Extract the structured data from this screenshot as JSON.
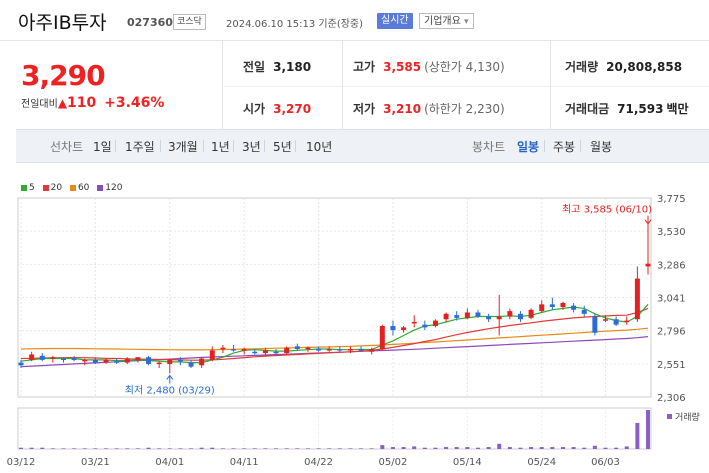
{
  "header": {
    "stock_name": "아주IB투자",
    "stock_code": "027360",
    "market": "코스닥",
    "datetime": "2024.06.10 15:13 기준(장중)",
    "realtime_label": "실시간",
    "overview_label": "기업개요"
  },
  "price": {
    "current": "3,290",
    "change_label": "전일대비",
    "change": "110",
    "change_pct": "+3.46%"
  },
  "stats": {
    "prev_close_label": "전일",
    "prev_close": "3,180",
    "high_label": "고가",
    "high": "3,585",
    "upper_limit": "(상한가 4,130)",
    "volume_label": "거래량",
    "volume": "20,808,858",
    "open_label": "시가",
    "open": "3,270",
    "low_label": "저가",
    "low": "3,210",
    "lower_limit": "(하한가 2,230)",
    "amount_label": "거래대금",
    "amount": "71,593",
    "amount_unit": "백만"
  },
  "toolbar": {
    "line_chart_label": "선차트",
    "periods": [
      "1일",
      "1주일",
      "3개월",
      "1년",
      "3년",
      "5년",
      "10년"
    ],
    "candle_chart_label": "봉차트",
    "candle_periods": [
      "일봉",
      "주봉",
      "월봉"
    ],
    "active_candle": "일봉"
  },
  "legend": {
    "ma": [
      {
        "label": "5",
        "color": "#33aa33"
      },
      {
        "label": "20",
        "color": "#e03a3a"
      },
      {
        "label": "60",
        "color": "#e88a1a"
      },
      {
        "label": "120",
        "color": "#8a4bb8"
      }
    ]
  },
  "colors": {
    "up": "#e22222",
    "down": "#2a6dd9",
    "volume": "#8a5fc8"
  },
  "chart_data": {
    "type": "candlestick",
    "y_ticks": [
      "3,775",
      "3,530",
      "3,286",
      "3,041",
      "2,796",
      "2,551",
      "2,306"
    ],
    "y_range": [
      2306,
      3775
    ],
    "x_ticks": [
      {
        "label": "03/12",
        "index": 0
      },
      {
        "label": "03/21",
        "index": 7
      },
      {
        "label": "04/01",
        "index": 14
      },
      {
        "label": "04/11",
        "index": 21
      },
      {
        "label": "04/22",
        "index": 28
      },
      {
        "label": "05/02",
        "index": 35
      },
      {
        "label": "05/14",
        "index": 42
      },
      {
        "label": "05/24",
        "index": 49
      },
      {
        "label": "06/03",
        "index": 55
      }
    ],
    "max_annotation": "최고 3,585 (06/10)",
    "min_annotation": "최저 2,480 (03/29)",
    "volume_label": "거래량",
    "candles": [
      {
        "o": 2560,
        "h": 2580,
        "l": 2520,
        "c": 2540
      },
      {
        "o": 2580,
        "h": 2640,
        "l": 2570,
        "c": 2620
      },
      {
        "o": 2610,
        "h": 2630,
        "l": 2570,
        "c": 2580
      },
      {
        "o": 2590,
        "h": 2610,
        "l": 2560,
        "c": 2600
      },
      {
        "o": 2590,
        "h": 2600,
        "l": 2560,
        "c": 2580
      },
      {
        "o": 2590,
        "h": 2610,
        "l": 2570,
        "c": 2580
      },
      {
        "o": 2570,
        "h": 2590,
        "l": 2540,
        "c": 2580
      },
      {
        "o": 2580,
        "h": 2600,
        "l": 2550,
        "c": 2560
      },
      {
        "o": 2560,
        "h": 2590,
        "l": 2550,
        "c": 2580
      },
      {
        "o": 2570,
        "h": 2590,
        "l": 2550,
        "c": 2560
      },
      {
        "o": 2560,
        "h": 2600,
        "l": 2550,
        "c": 2590
      },
      {
        "o": 2580,
        "h": 2600,
        "l": 2560,
        "c": 2600
      },
      {
        "o": 2600,
        "h": 2610,
        "l": 2540,
        "c": 2550
      },
      {
        "o": 2550,
        "h": 2570,
        "l": 2520,
        "c": 2560
      },
      {
        "o": 2550,
        "h": 2590,
        "l": 2480,
        "c": 2580
      },
      {
        "o": 2580,
        "h": 2600,
        "l": 2540,
        "c": 2570
      },
      {
        "o": 2560,
        "h": 2580,
        "l": 2520,
        "c": 2530
      },
      {
        "o": 2540,
        "h": 2600,
        "l": 2520,
        "c": 2590
      },
      {
        "o": 2580,
        "h": 2680,
        "l": 2570,
        "c": 2650
      },
      {
        "o": 2660,
        "h": 2690,
        "l": 2630,
        "c": 2670
      },
      {
        "o": 2660,
        "h": 2690,
        "l": 2640,
        "c": 2650
      },
      {
        "o": 2650,
        "h": 2670,
        "l": 2620,
        "c": 2660
      },
      {
        "o": 2640,
        "h": 2660,
        "l": 2620,
        "c": 2630
      },
      {
        "o": 2630,
        "h": 2670,
        "l": 2620,
        "c": 2650
      },
      {
        "o": 2640,
        "h": 2660,
        "l": 2620,
        "c": 2630
      },
      {
        "o": 2630,
        "h": 2680,
        "l": 2620,
        "c": 2670
      },
      {
        "o": 2680,
        "h": 2700,
        "l": 2650,
        "c": 2660
      },
      {
        "o": 2660,
        "h": 2680,
        "l": 2640,
        "c": 2670
      },
      {
        "o": 2660,
        "h": 2680,
        "l": 2640,
        "c": 2650
      },
      {
        "o": 2650,
        "h": 2680,
        "l": 2640,
        "c": 2660
      },
      {
        "o": 2660,
        "h": 2680,
        "l": 2640,
        "c": 2650
      },
      {
        "o": 2650,
        "h": 2680,
        "l": 2630,
        "c": 2660
      },
      {
        "o": 2660,
        "h": 2680,
        "l": 2640,
        "c": 2650
      },
      {
        "o": 2640,
        "h": 2670,
        "l": 2620,
        "c": 2660
      },
      {
        "o": 2660,
        "h": 2840,
        "l": 2650,
        "c": 2830
      },
      {
        "o": 2830,
        "h": 2870,
        "l": 2760,
        "c": 2800
      },
      {
        "o": 2800,
        "h": 2830,
        "l": 2780,
        "c": 2820
      },
      {
        "o": 2850,
        "h": 2910,
        "l": 2820,
        "c": 2860
      },
      {
        "o": 2840,
        "h": 2870,
        "l": 2800,
        "c": 2820
      },
      {
        "o": 2830,
        "h": 2880,
        "l": 2820,
        "c": 2870
      },
      {
        "o": 2880,
        "h": 2930,
        "l": 2860,
        "c": 2920
      },
      {
        "o": 2910,
        "h": 2940,
        "l": 2870,
        "c": 2890
      },
      {
        "o": 2890,
        "h": 2960,
        "l": 2880,
        "c": 2930
      },
      {
        "o": 2930,
        "h": 2950,
        "l": 2890,
        "c": 2900
      },
      {
        "o": 2900,
        "h": 2920,
        "l": 2860,
        "c": 2880
      },
      {
        "o": 2880,
        "h": 3060,
        "l": 2760,
        "c": 2900
      },
      {
        "o": 2900,
        "h": 2960,
        "l": 2880,
        "c": 2940
      },
      {
        "o": 2920,
        "h": 2940,
        "l": 2860,
        "c": 2880
      },
      {
        "o": 2890,
        "h": 2960,
        "l": 2880,
        "c": 2950
      },
      {
        "o": 2940,
        "h": 3020,
        "l": 2930,
        "c": 2990
      },
      {
        "o": 2990,
        "h": 3040,
        "l": 2950,
        "c": 2970
      },
      {
        "o": 2970,
        "h": 3010,
        "l": 2950,
        "c": 3000
      },
      {
        "o": 2980,
        "h": 3000,
        "l": 2930,
        "c": 2950
      },
      {
        "o": 2950,
        "h": 2980,
        "l": 2900,
        "c": 2920
      },
      {
        "o": 2900,
        "h": 2920,
        "l": 2760,
        "c": 2780
      },
      {
        "o": 2870,
        "h": 2910,
        "l": 2860,
        "c": 2880
      },
      {
        "o": 2880,
        "h": 2900,
        "l": 2830,
        "c": 2840
      },
      {
        "o": 2860,
        "h": 2900,
        "l": 2840,
        "c": 2870
      },
      {
        "o": 2880,
        "h": 3270,
        "l": 2860,
        "c": 3180
      },
      {
        "o": 3270,
        "h": 3585,
        "l": 3210,
        "c": 3290
      }
    ],
    "volumes": [
      2,
      2,
      2,
      1,
      1,
      1,
      1,
      1,
      1,
      1,
      1,
      1,
      2,
      1,
      1,
      1,
      1,
      2,
      2,
      1,
      1,
      1,
      1,
      1,
      1,
      1,
      1,
      1,
      1,
      1,
      1,
      1,
      1,
      1,
      6,
      3,
      3,
      4,
      2,
      2,
      3,
      3,
      3,
      2,
      3,
      8,
      3,
      2,
      3,
      3,
      3,
      3,
      3,
      2,
      5,
      2,
      2,
      4,
      40,
      60
    ],
    "ma_lines": {
      "5": [
        2570,
        2580,
        2590,
        2590,
        2590,
        2590,
        2580,
        2580,
        2580,
        2575,
        2575,
        2580,
        2575,
        2570,
        2565,
        2565,
        2560,
        2560,
        2580,
        2600,
        2630,
        2650,
        2655,
        2650,
        2645,
        2645,
        2650,
        2655,
        2660,
        2660,
        2655,
        2655,
        2658,
        2656,
        2690,
        2720,
        2760,
        2800,
        2830,
        2840,
        2860,
        2880,
        2890,
        2900,
        2900,
        2900,
        2905,
        2900,
        2910,
        2930,
        2950,
        2960,
        2970,
        2960,
        2920,
        2890,
        2870,
        2860,
        2900,
        2990
      ],
      "20": [
        2590,
        2592,
        2594,
        2595,
        2596,
        2597,
        2596,
        2594,
        2592,
        2590,
        2588,
        2586,
        2585,
        2583,
        2582,
        2580,
        2578,
        2578,
        2580,
        2584,
        2590,
        2597,
        2603,
        2608,
        2612,
        2616,
        2620,
        2624,
        2628,
        2632,
        2636,
        2640,
        2645,
        2650,
        2660,
        2672,
        2686,
        2700,
        2716,
        2730,
        2748,
        2766,
        2782,
        2796,
        2810,
        2822,
        2834,
        2844,
        2854,
        2864,
        2874,
        2882,
        2890,
        2896,
        2900,
        2904,
        2908,
        2910,
        2930,
        2960
      ],
      "60": [
        2660,
        2662,
        2663,
        2664,
        2664,
        2664,
        2663,
        2662,
        2661,
        2660,
        2659,
        2658,
        2657,
        2656,
        2655,
        2654,
        2654,
        2654,
        2655,
        2656,
        2658,
        2660,
        2662,
        2664,
        2666,
        2668,
        2670,
        2672,
        2674,
        2676,
        2678,
        2680,
        2683,
        2686,
        2690,
        2694,
        2698,
        2703,
        2708,
        2712,
        2717,
        2722,
        2727,
        2732,
        2737,
        2742,
        2747,
        2752,
        2757,
        2762,
        2767,
        2772,
        2777,
        2782,
        2787,
        2792,
        2796,
        2800,
        2806,
        2814
      ],
      "120": [
        2530,
        2534,
        2538,
        2542,
        2546,
        2550,
        2554,
        2558,
        2562,
        2566,
        2570,
        2574,
        2578,
        2582,
        2586,
        2590,
        2594,
        2598,
        2601,
        2604,
        2607,
        2610,
        2613,
        2616,
        2619,
        2622,
        2625,
        2628,
        2631,
        2634,
        2637,
        2640,
        2643,
        2646,
        2649,
        2652,
        2655,
        2658,
        2662,
        2666,
        2670,
        2674,
        2678,
        2682,
        2686,
        2690,
        2694,
        2698,
        2702,
        2706,
        2710,
        2714,
        2718,
        2722,
        2726,
        2730,
        2734,
        2738,
        2744,
        2752
      ]
    }
  }
}
